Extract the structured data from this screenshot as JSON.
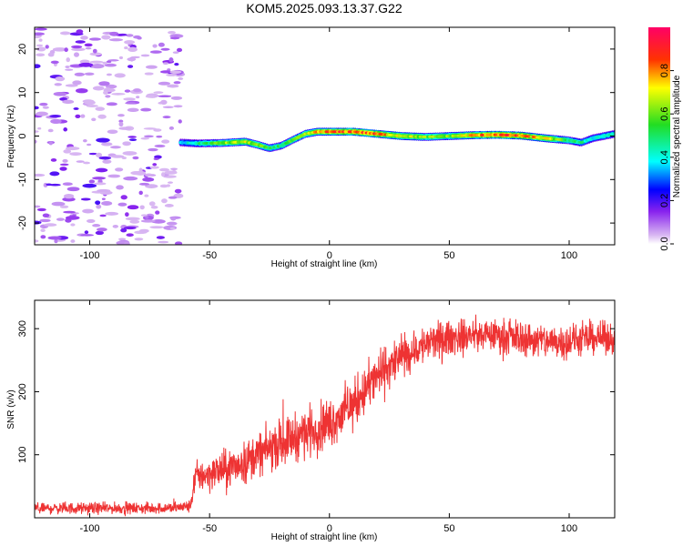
{
  "title": "KOM5.2025.093.13.37.G22",
  "chart_data": [
    {
      "type": "heatmap",
      "xlabel": "Height of straight line (km)",
      "ylabel": "Frequency (Hz)",
      "xlim": [
        -123,
        119
      ],
      "ylim": [
        -25,
        25
      ],
      "xticks": [
        -100,
        -50,
        0,
        50,
        100
      ],
      "yticks": [
        -20,
        -10,
        0,
        10,
        20
      ],
      "colorbar": {
        "label": "Normalized spectral amplitude",
        "range": [
          0,
          1
        ],
        "ticks": [
          "0.0",
          "0.2",
          "0.4",
          "0.6",
          "0.8"
        ],
        "tick_values": [
          0,
          0.2,
          0.4,
          0.6,
          0.8
        ]
      },
      "noise_region_x": [
        -123,
        -62
      ],
      "ridge": {
        "x": [
          -62,
          -55,
          -45,
          -35,
          -30,
          -25,
          -20,
          -15,
          -10,
          -5,
          0,
          10,
          20,
          30,
          40,
          50,
          60,
          70,
          80,
          90,
          100,
          105,
          110,
          119
        ],
        "freq_hz": [
          -1.5,
          -1.7,
          -1.6,
          -1.3,
          -2.0,
          -2.8,
          -2.2,
          -0.8,
          0.5,
          1.0,
          1.0,
          1.0,
          0.5,
          0.0,
          -0.2,
          0.0,
          0.2,
          0.3,
          0.1,
          -0.5,
          -1.0,
          -1.5,
          -0.5,
          0.5
        ],
        "amplitude": [
          0.35,
          0.45,
          0.6,
          0.65,
          0.6,
          0.5,
          0.5,
          0.55,
          0.6,
          0.75,
          0.8,
          0.85,
          0.8,
          0.7,
          0.6,
          0.6,
          0.75,
          0.85,
          0.8,
          0.7,
          0.5,
          0.45,
          0.4,
          0.45
        ]
      }
    },
    {
      "type": "line",
      "xlabel": "Height of straight line (km)",
      "ylabel": "SNR (v/v)",
      "xlim": [
        -123,
        119
      ],
      "ylim": [
        0,
        345
      ],
      "xticks": [
        -100,
        -50,
        0,
        50,
        100
      ],
      "yticks": [
        100,
        200,
        300
      ],
      "color": "#ee3333",
      "series": [
        {
          "x": [
            -123,
            -115,
            -105,
            -95,
            -85,
            -75,
            -65,
            -58,
            -56,
            -50,
            -40,
            -30,
            -20,
            -10,
            0,
            10,
            20,
            30,
            40,
            50,
            60,
            70,
            80,
            90,
            100,
            110,
            119
          ],
          "values": [
            15,
            15,
            15,
            15,
            15,
            15,
            16,
            18,
            65,
            70,
            80,
            100,
            120,
            135,
            150,
            180,
            225,
            255,
            275,
            285,
            290,
            290,
            285,
            280,
            280,
            285,
            285
          ],
          "noise": [
            8,
            8,
            8,
            8,
            8,
            8,
            8,
            9,
            22,
            25,
            28,
            30,
            32,
            35,
            35,
            35,
            35,
            30,
            28,
            25,
            22,
            22,
            25,
            25,
            25,
            22,
            22
          ]
        }
      ]
    }
  ]
}
